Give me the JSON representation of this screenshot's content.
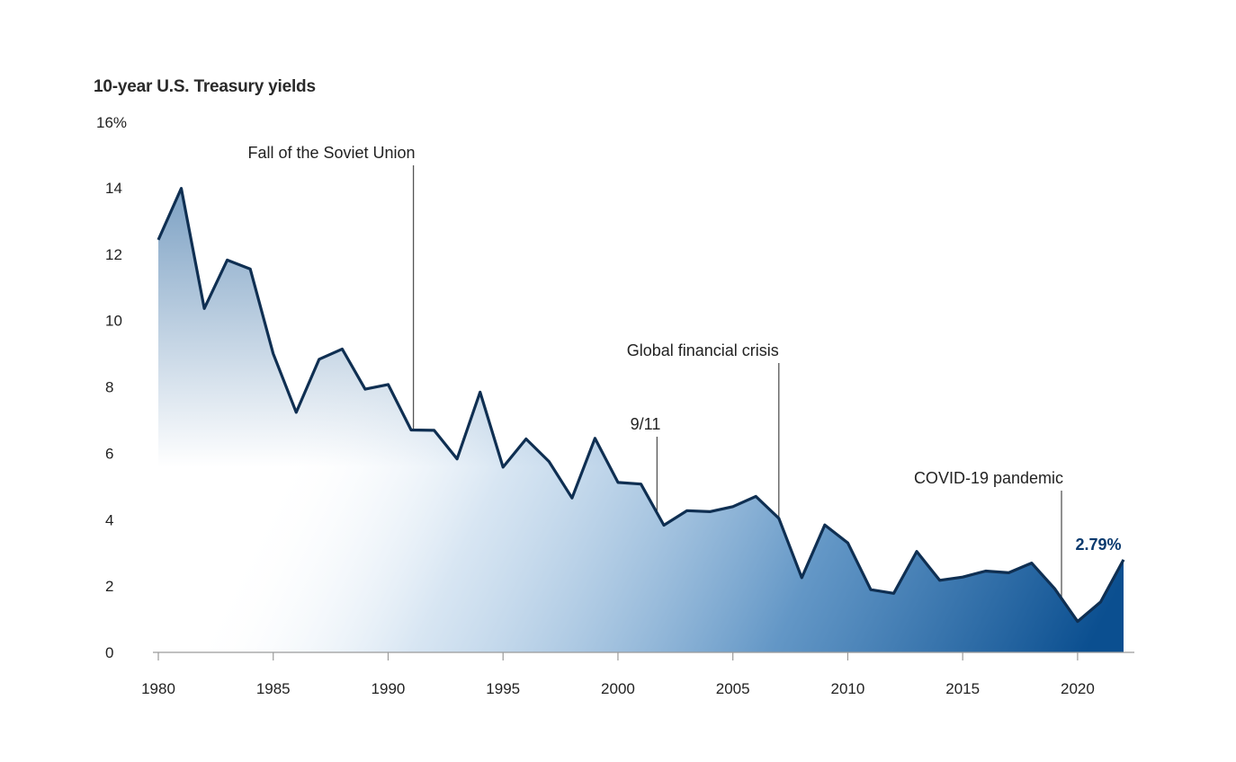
{
  "colors": {
    "line": "#0f2f52",
    "fill_top": "#0b4f90",
    "annotation_line": "#555555",
    "last_label": "#0b3a6e"
  },
  "chart_data": {
    "type": "area",
    "title": "10-year U.S. Treasury yields",
    "xlabel": "",
    "ylabel": "",
    "y_unit_label": "16%",
    "xlim": [
      1980,
      2022
    ],
    "ylim": [
      0,
      16
    ],
    "x_ticks": [
      1980,
      1985,
      1990,
      1995,
      2000,
      2005,
      2010,
      2015,
      2020
    ],
    "y_ticks": [
      0,
      2,
      4,
      6,
      8,
      10,
      12,
      14
    ],
    "grid": false,
    "x": [
      1980,
      1981,
      1982,
      1983,
      1984,
      1985,
      1986,
      1987,
      1988,
      1989,
      1990,
      1991,
      1992,
      1993,
      1994,
      1995,
      1996,
      1997,
      1998,
      1999,
      2000,
      2001,
      2002,
      2003,
      2004,
      2005,
      2006,
      2007,
      2008,
      2009,
      2010,
      2011,
      2012,
      2013,
      2014,
      2015,
      2016,
      2017,
      2018,
      2019,
      2020,
      2021,
      2022
    ],
    "values": [
      12.43,
      13.98,
      10.36,
      11.82,
      11.55,
      9.0,
      7.23,
      8.83,
      9.14,
      7.93,
      8.07,
      6.7,
      6.69,
      5.83,
      7.84,
      5.58,
      6.43,
      5.75,
      4.65,
      6.45,
      5.12,
      5.07,
      3.83,
      4.27,
      4.24,
      4.39,
      4.7,
      4.04,
      2.25,
      3.84,
      3.3,
      1.89,
      1.78,
      3.04,
      2.17,
      2.27,
      2.45,
      2.4,
      2.69,
      1.92,
      0.93,
      1.52,
      2.79
    ],
    "last_value_label": "2.79%",
    "annotations": [
      {
        "label": "Fall of the Soviet Union",
        "x": 1991.1
      },
      {
        "label": "9/11",
        "x": 2001.7
      },
      {
        "label": "Global financial crisis",
        "x": 2007.0
      },
      {
        "label": "COVID-19 pandemic",
        "x": 2019.3
      }
    ]
  }
}
